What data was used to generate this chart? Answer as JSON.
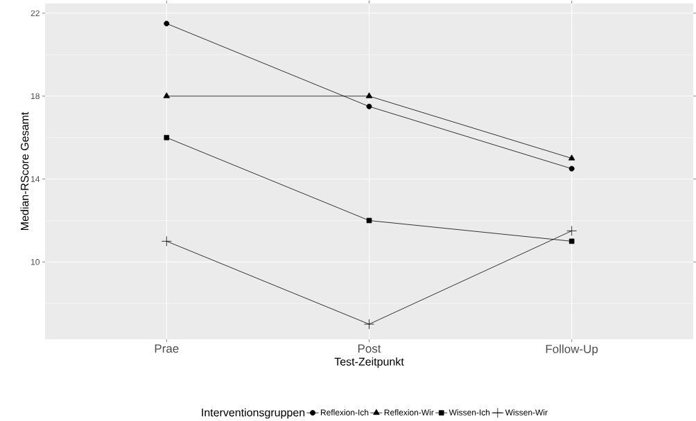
{
  "chart_data": {
    "type": "line",
    "xlabel": "Test-Zeitpunkt",
    "ylabel": "Median-RScore Gesamt",
    "legend_title": "Interventionsgruppen",
    "categories": [
      "Prae",
      "Post",
      "Follow-Up"
    ],
    "series": [
      {
        "name": "Reflexion-Ich",
        "color": "#000000",
        "marker": "circle",
        "values": [
          21.5,
          17.5,
          14.5
        ]
      },
      {
        "name": "Reflexion-Wir",
        "color": "#000000",
        "marker": "triangle",
        "values": [
          18,
          18,
          15
        ]
      },
      {
        "name": "Wissen-Ich",
        "color": "#000000",
        "marker": "square",
        "values": [
          16,
          12,
          11
        ]
      },
      {
        "name": "Wissen-Wir",
        "color": "#000000",
        "marker": "cross",
        "values": [
          11,
          7,
          11.5
        ]
      }
    ],
    "ylim": [
      6.27,
      22.47
    ],
    "yticks": [
      10,
      14,
      18,
      22
    ],
    "grid": true,
    "legend": "bottom",
    "line_style": "solid"
  }
}
